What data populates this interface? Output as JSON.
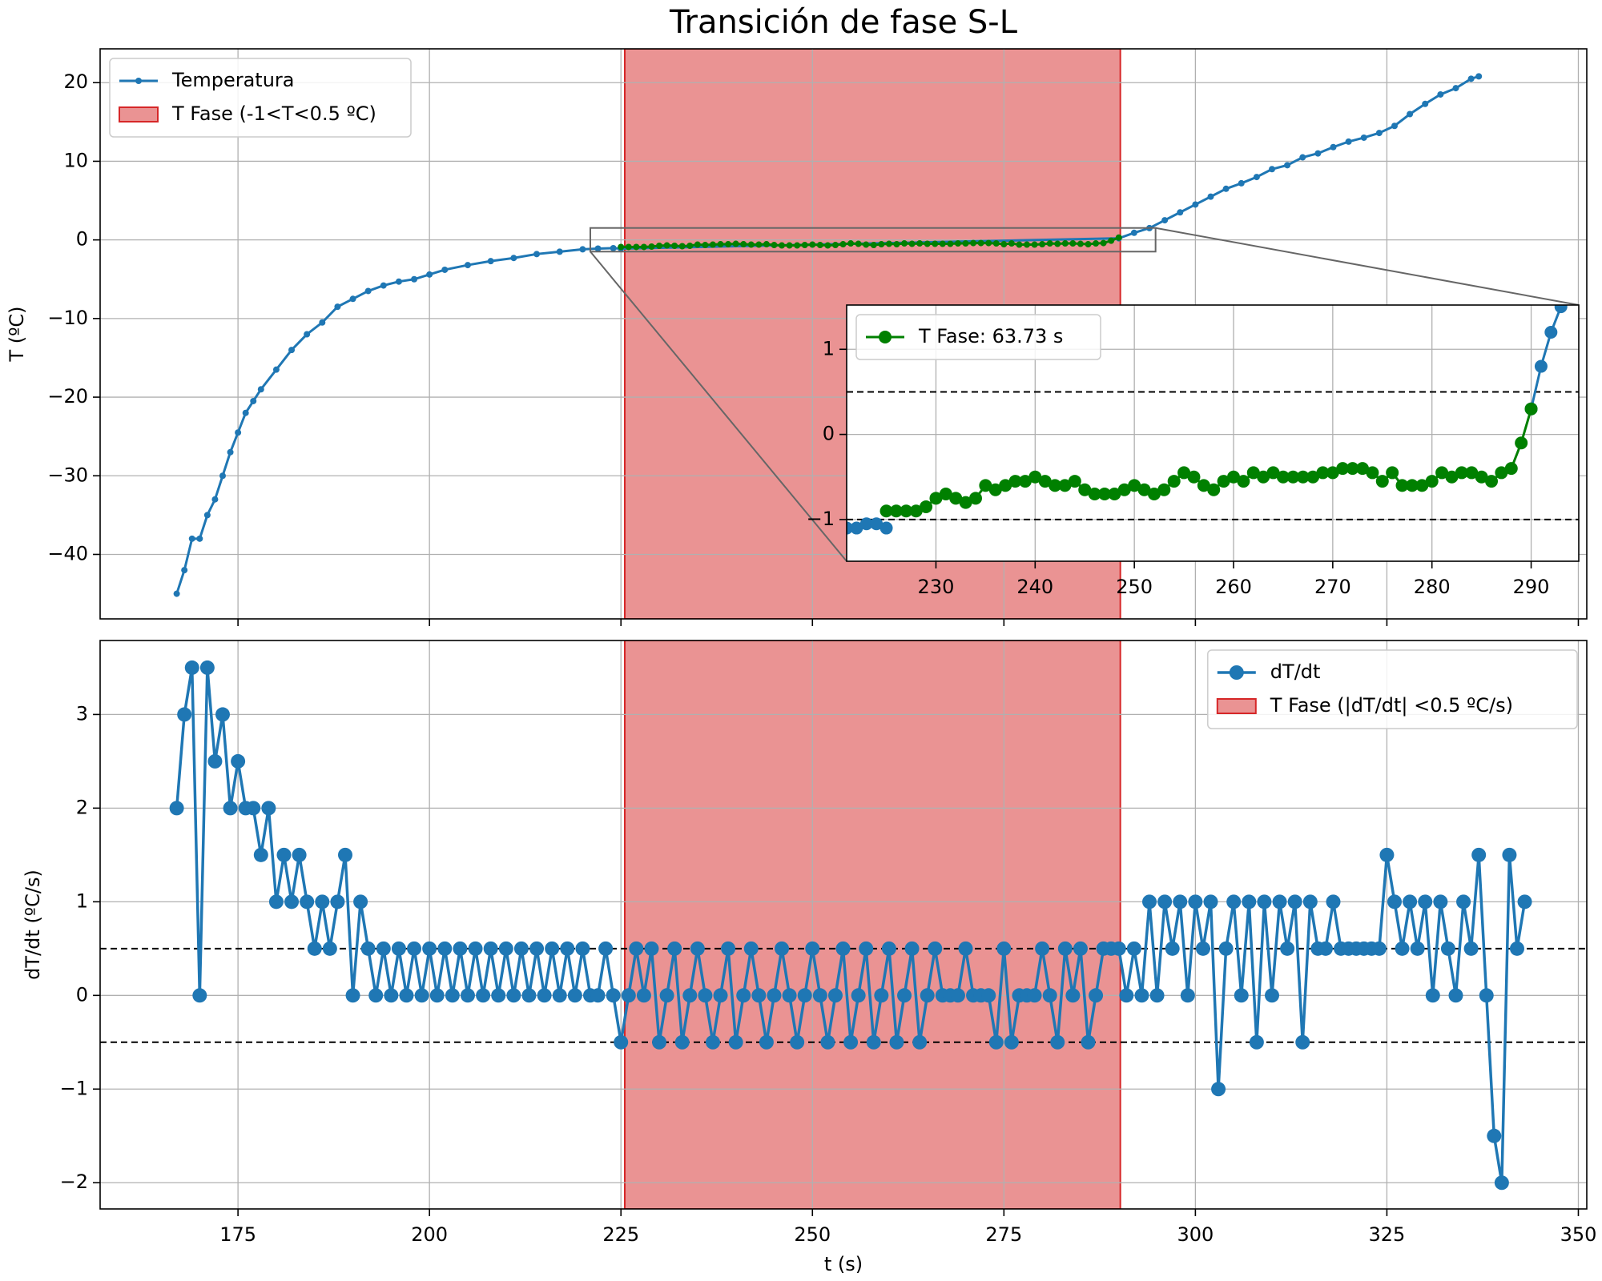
{
  "chart_data": [
    {
      "type": "line",
      "title": "Transición de fase S-L",
      "ylabel": "T (ºC)",
      "xlim": [
        157,
        351.1
      ],
      "ylim": [
        -48.2,
        24.3
      ],
      "xticks": [
        175,
        200,
        225,
        250,
        275,
        300,
        325,
        350
      ],
      "show_xtick_labels": false,
      "yticks": [
        {
          "value": -40,
          "label": "−40"
        },
        {
          "value": -30,
          "label": "−30"
        },
        {
          "value": -20,
          "label": "−20"
        },
        {
          "value": -10,
          "label": "−10"
        },
        0,
        10,
        20
      ],
      "grid": true,
      "legend": "upper left",
      "spans": [
        {
          "name": "T Fase (-1<T<0.5 ºC)",
          "color": "#d62728",
          "x": [
            225.5,
            290.2
          ]
        }
      ],
      "series": [
        {
          "name": "Temperatura",
          "color": "#1f77b4",
          "x": [
            167,
            168,
            169,
            170,
            171,
            172,
            173,
            174,
            175,
            176,
            177,
            178,
            180,
            182,
            184,
            186,
            188,
            190,
            192,
            194,
            196,
            198,
            200,
            202,
            205,
            208,
            211,
            214,
            217,
            220,
            222,
            224,
            225,
            290,
            292,
            294,
            296,
            298,
            300,
            302,
            304,
            306,
            308,
            310,
            312,
            314,
            316,
            318,
            320,
            322,
            324,
            326,
            328,
            330,
            332,
            334,
            336,
            337
          ],
          "values": [
            -45,
            -42,
            -38,
            -38,
            -35,
            -33,
            -30,
            -27,
            -24.5,
            -22,
            -20.5,
            -19,
            -16.5,
            -14,
            -12,
            -10.5,
            -8.5,
            -7.5,
            -6.5,
            -5.8,
            -5.3,
            -5,
            -4.4,
            -3.8,
            -3.2,
            -2.7,
            -2.3,
            -1.8,
            -1.5,
            -1.2,
            -1.1,
            -1.05,
            -1.1,
            0.2,
            0.9,
            1.5,
            2.5,
            3.5,
            4.5,
            5.5,
            6.5,
            7.2,
            8,
            9,
            9.5,
            10.5,
            11,
            11.8,
            12.5,
            13,
            13.6,
            14.5,
            16,
            17.3,
            18.5,
            19.3,
            20.5,
            20.8
          ]
        },
        {
          "color": "#008000",
          "x": [
            225,
            226,
            227,
            228,
            229,
            230,
            231,
            232,
            233,
            234,
            235,
            236,
            237,
            238,
            239,
            240,
            241,
            242,
            243,
            244,
            245,
            246,
            247,
            248,
            249,
            250,
            251,
            252,
            253,
            254,
            255,
            256,
            257,
            258,
            259,
            260,
            261,
            262,
            263,
            264,
            265,
            266,
            267,
            268,
            269,
            270,
            271,
            272,
            273,
            274,
            275,
            276,
            277,
            278,
            279,
            280,
            281,
            282,
            283,
            284,
            285,
            286,
            287,
            288,
            289,
            290
          ],
          "values": [
            -0.9,
            -0.9,
            -0.9,
            -0.9,
            -0.85,
            -0.75,
            -0.7,
            -0.75,
            -0.8,
            -0.75,
            -0.6,
            -0.65,
            -0.6,
            -0.55,
            -0.55,
            -0.5,
            -0.55,
            -0.6,
            -0.6,
            -0.55,
            -0.65,
            -0.7,
            -0.7,
            -0.7,
            -0.65,
            -0.6,
            -0.65,
            -0.7,
            -0.65,
            -0.55,
            -0.45,
            -0.5,
            -0.6,
            -0.65,
            -0.55,
            -0.5,
            -0.55,
            -0.45,
            -0.5,
            -0.45,
            -0.5,
            -0.5,
            -0.5,
            -0.5,
            -0.45,
            -0.45,
            -0.4,
            -0.4,
            -0.4,
            -0.45,
            -0.55,
            -0.45,
            -0.6,
            -0.6,
            -0.6,
            -0.55,
            -0.45,
            -0.5,
            -0.45,
            -0.45,
            -0.5,
            -0.55,
            -0.45,
            -0.4,
            -0.1,
            0.3
          ]
        }
      ]
    },
    {
      "type": "line",
      "xlim": [
        221,
        294.8
      ],
      "ylim": [
        -1.49,
        1.52
      ],
      "xticks": [
        230,
        240,
        250,
        260,
        270,
        280,
        290
      ],
      "yticks": [
        {
          "value": -1,
          "label": "−1"
        },
        0,
        1
      ],
      "grid": true,
      "legend": "upper left",
      "hlines": [
        -1,
        0.5
      ],
      "series": [
        {
          "color": "#1f77b4",
          "x": [
            221,
            222,
            223,
            224,
            225
          ],
          "values": [
            -1.1,
            -1.1,
            -1.05,
            -1.05,
            -1.1
          ]
        },
        {
          "color": "#1f77b4",
          "x": [
            290,
            291,
            292,
            293,
            294
          ],
          "values": [
            0.3,
            0.8,
            1.2,
            1.5,
            1.9
          ]
        },
        {
          "name": "T Fase: 63.73 s",
          "color": "#008000",
          "x": [
            225,
            226,
            227,
            228,
            229,
            230,
            231,
            232,
            233,
            234,
            235,
            236,
            237,
            238,
            239,
            240,
            241,
            242,
            243,
            244,
            245,
            246,
            247,
            248,
            249,
            250,
            251,
            252,
            253,
            254,
            255,
            256,
            257,
            258,
            259,
            260,
            261,
            262,
            263,
            264,
            265,
            266,
            267,
            268,
            269,
            270,
            271,
            272,
            273,
            274,
            275,
            276,
            277,
            278,
            279,
            280,
            281,
            282,
            283,
            284,
            285,
            286,
            287,
            288,
            289,
            290
          ],
          "values": [
            -0.9,
            -0.9,
            -0.9,
            -0.9,
            -0.85,
            -0.75,
            -0.7,
            -0.75,
            -0.8,
            -0.75,
            -0.6,
            -0.65,
            -0.6,
            -0.55,
            -0.55,
            -0.5,
            -0.55,
            -0.6,
            -0.6,
            -0.55,
            -0.65,
            -0.7,
            -0.7,
            -0.7,
            -0.65,
            -0.6,
            -0.65,
            -0.7,
            -0.65,
            -0.55,
            -0.45,
            -0.5,
            -0.6,
            -0.65,
            -0.55,
            -0.5,
            -0.55,
            -0.45,
            -0.5,
            -0.45,
            -0.5,
            -0.5,
            -0.5,
            -0.5,
            -0.45,
            -0.45,
            -0.4,
            -0.4,
            -0.4,
            -0.45,
            -0.55,
            -0.45,
            -0.6,
            -0.6,
            -0.6,
            -0.55,
            -0.45,
            -0.5,
            -0.45,
            -0.45,
            -0.5,
            -0.55,
            -0.45,
            -0.4,
            -0.1,
            0.3
          ]
        }
      ]
    },
    {
      "type": "line",
      "xlabel": "t (s)",
      "ylabel": "dT/dt (ºC/s)",
      "xlim": [
        157,
        351.1
      ],
      "ylim": [
        -2.28,
        3.79
      ],
      "xticks": [
        175,
        200,
        225,
        250,
        275,
        300,
        325,
        350
      ],
      "yticks": [
        {
          "value": -2,
          "label": "−2"
        },
        {
          "value": -1,
          "label": "−1"
        },
        0,
        1,
        2,
        3
      ],
      "grid": true,
      "legend": "upper right",
      "hlines": [
        -0.5,
        0.5
      ],
      "spans": [
        {
          "name": "T Fase (|dT/dt| <0.5 ºC/s)",
          "color": "#d62728",
          "x": [
            225.5,
            290.2
          ]
        }
      ],
      "series": [
        {
          "name": "dT/dt",
          "color": "#1f77b4",
          "x": [
            167,
            168,
            169,
            170,
            171,
            172,
            173,
            174,
            175,
            176,
            177,
            178,
            179,
            180,
            181,
            182,
            183,
            184,
            185,
            186,
            187,
            188,
            189,
            190,
            191,
            192,
            193,
            194,
            195,
            196,
            197,
            198,
            199,
            200,
            201,
            202,
            203,
            204,
            205,
            206,
            207,
            208,
            209,
            210,
            211,
            212,
            213,
            214,
            215,
            216,
            217,
            218,
            219,
            220,
            221,
            222,
            223,
            224,
            225,
            226,
            227,
            228,
            229,
            230,
            231,
            232,
            233,
            234,
            235,
            236,
            237,
            238,
            239,
            240,
            241,
            242,
            243,
            244,
            245,
            246,
            247,
            248,
            249,
            250,
            251,
            252,
            253,
            254,
            255,
            256,
            257,
            258,
            259,
            260,
            261,
            262,
            263,
            264,
            265,
            266,
            267,
            268,
            269,
            270,
            271,
            272,
            273,
            274,
            275,
            276,
            277,
            278,
            279,
            280,
            281,
            282,
            283,
            284,
            285,
            286,
            287,
            288,
            289,
            290,
            291,
            292,
            293,
            294,
            295,
            296,
            297,
            298,
            299,
            300,
            301,
            302,
            303,
            304,
            305,
            306,
            307,
            308,
            309,
            310,
            311,
            312,
            313,
            314,
            315,
            316,
            317,
            318,
            319,
            320,
            321,
            322,
            323,
            324,
            325,
            326,
            327,
            328,
            329,
            330,
            331,
            332,
            333,
            334,
            335,
            336,
            337,
            338,
            339,
            340,
            341,
            342,
            343
          ],
          "values": [
            2,
            3,
            3.5,
            0,
            3.5,
            2.5,
            3,
            2,
            2.5,
            2,
            2,
            1.5,
            2,
            1,
            1.5,
            1,
            1.5,
            1,
            0.5,
            1,
            0.5,
            1,
            1.5,
            0,
            1,
            0.5,
            0,
            0.5,
            0,
            0.5,
            0,
            0.5,
            0,
            0.5,
            0,
            0.5,
            0,
            0.5,
            0,
            0.5,
            0,
            0.5,
            0,
            0.5,
            0,
            0.5,
            0,
            0.5,
            0,
            0.5,
            0,
            0.5,
            0,
            0.5,
            0,
            0,
            0.5,
            0,
            -0.5,
            0,
            0.5,
            0,
            0.5,
            -0.5,
            0,
            0.5,
            -0.5,
            0,
            0.5,
            0,
            -0.5,
            0,
            0.5,
            -0.5,
            0,
            0.5,
            0,
            -0.5,
            0,
            0.5,
            0,
            -0.5,
            0,
            0.5,
            0,
            -0.5,
            0,
            0.5,
            -0.5,
            0,
            0.5,
            -0.5,
            0,
            0.5,
            -0.5,
            0,
            0.5,
            -0.5,
            0,
            0.5,
            0,
            0,
            0,
            0.5,
            0,
            0,
            0,
            -0.5,
            0.5,
            -0.5,
            0,
            0,
            0,
            0.5,
            0,
            -0.5,
            0.5,
            0,
            0.5,
            -0.5,
            0,
            0.5,
            0.5,
            0.5,
            0,
            0.5,
            0,
            1,
            0,
            1,
            0.5,
            1,
            0,
            1,
            0.5,
            1,
            -1,
            0.5,
            1,
            0,
            1,
            -0.5,
            1,
            0,
            1,
            0.5,
            1,
            -0.5,
            1,
            0.5,
            0.5,
            1,
            0.5,
            0.5,
            0.5,
            0.5,
            0.5,
            0.5,
            1.5,
            1,
            0.5,
            1,
            0.5,
            1,
            0,
            1,
            0.5,
            0,
            1,
            0.5,
            1.5,
            0,
            -1.5,
            -2,
            1.5,
            0.5,
            1
          ]
        }
      ]
    }
  ]
}
